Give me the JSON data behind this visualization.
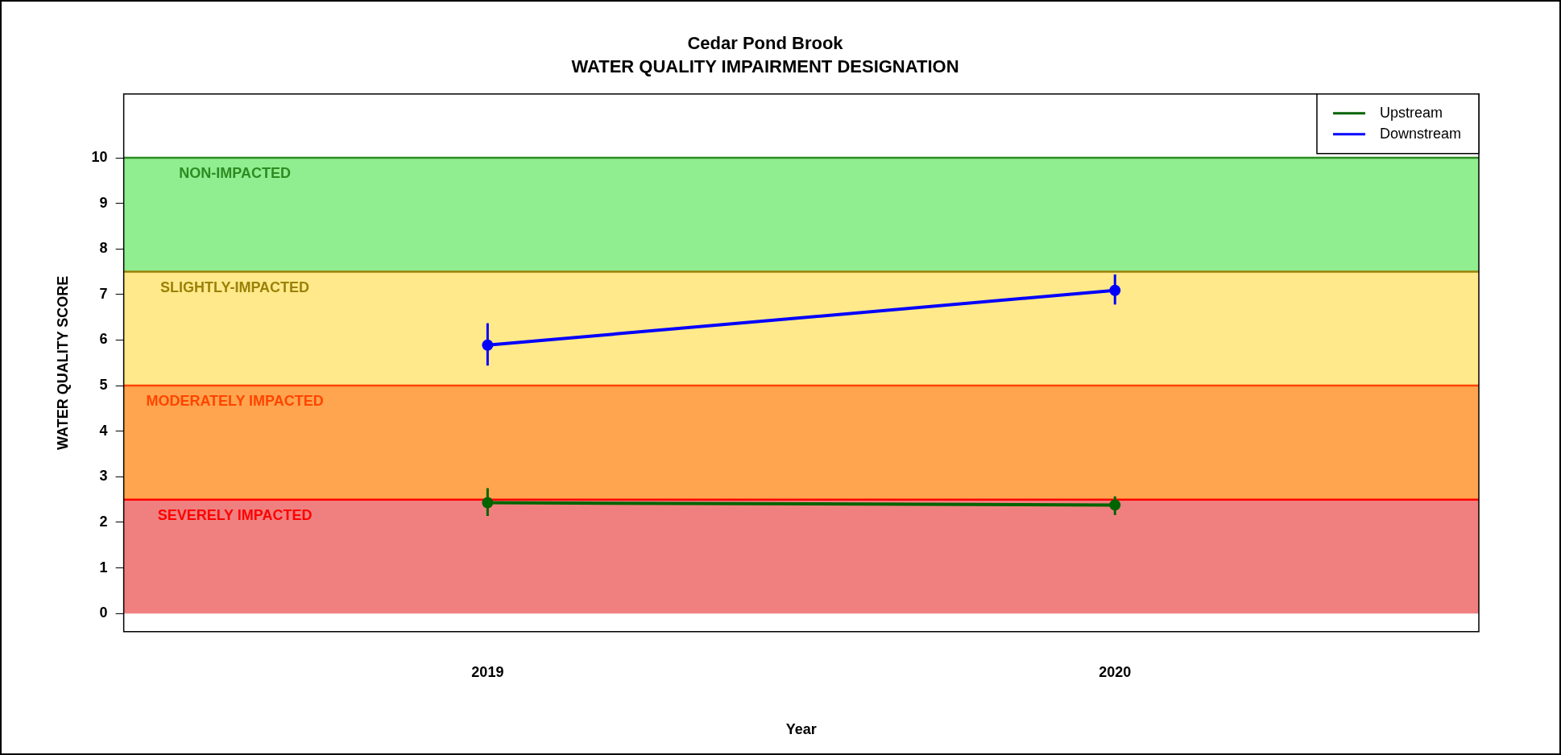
{
  "chart_data": {
    "type": "line",
    "title": "Cedar Pond Brook",
    "subtitle": "WATER QUALITY IMPAIRMENT DESIGNATION",
    "xlabel": "Year",
    "ylabel": "WATER QUALITY SCORE",
    "x": [
      2019,
      2020
    ],
    "xlim": [
      2018.42,
      2020.58
    ],
    "xticks": [
      2019,
      2020
    ],
    "ylim": [
      -0.4,
      11.4
    ],
    "yticks": [
      0,
      1,
      2,
      3,
      4,
      5,
      6,
      7,
      8,
      9,
      10
    ],
    "series": [
      {
        "name": "Upstream",
        "color": "#006400",
        "values": [
          2.43,
          2.38
        ],
        "errors": [
          [
            2.14,
            2.75
          ],
          [
            2.16,
            2.57
          ]
        ]
      },
      {
        "name": "Downstream",
        "color": "#0000ff",
        "values": [
          5.89,
          7.09
        ],
        "errors": [
          [
            5.44,
            6.37
          ],
          [
            6.78,
            7.44
          ]
        ]
      }
    ],
    "bands": [
      {
        "axis": "y",
        "from": 7.5,
        "to": 10,
        "label": "NON-IMPACTED",
        "color": "#90ee90"
      },
      {
        "axis": "y",
        "from": 5,
        "to": 7.5,
        "label": "SLIGHTLY-IMPACTED",
        "color": "#ffe98a"
      },
      {
        "axis": "y",
        "from": 2.5,
        "to": 5,
        "label": "MODERATELY IMPACTED",
        "color": "#ffa54f"
      },
      {
        "axis": "y",
        "from": 0,
        "to": 2.5,
        "label": "SEVERELY IMPACTED",
        "color": "#f08080"
      }
    ],
    "ref_lines": [
      {
        "axis": "y",
        "value": 10,
        "color": "#2e8b22"
      },
      {
        "axis": "y",
        "value": 7.5,
        "color": "#9b8108"
      },
      {
        "axis": "y",
        "value": 5,
        "color": "#ff4500"
      },
      {
        "axis": "y",
        "value": 2.5,
        "color": "#ff0000"
      }
    ],
    "marker": "circle",
    "line_style": "solid",
    "legend": "top right",
    "grid": false
  }
}
